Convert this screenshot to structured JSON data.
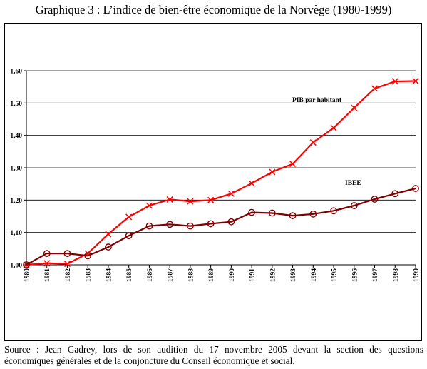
{
  "title": "Graphique 3 : L’indice de bien-être économique de la Norvège (1980-1999)",
  "source": {
    "line1": "Source : Jean Gadrey, lors de son audition du 17 novembre 2005 devant la section des questions",
    "line2": "économiques générales et de la conjoncture du Conseil économique et social."
  },
  "chart_data": {
    "type": "line",
    "title": "Graphique 3 : L’indice de bien-être économique de la Norvège (1980-1999)",
    "xlabel": "",
    "ylabel": "",
    "categories": [
      "1980",
      "1981",
      "1982",
      "1983",
      "1984",
      "1985",
      "1986",
      "1987",
      "1988",
      "1989",
      "1990",
      "1991",
      "1992",
      "1993",
      "1994",
      "1995",
      "1996",
      "1997",
      "1998",
      "1999"
    ],
    "y_ticks": [
      "1,00",
      "1,10",
      "1,20",
      "1,30",
      "1,40",
      "1,50",
      "1,60"
    ],
    "ylim": [
      1.0,
      1.6
    ],
    "grid": true,
    "legend": "inline labels",
    "series": [
      {
        "name": "PIB par habitant",
        "color": "#ff0000",
        "marker": "x",
        "values": [
          1.0,
          1.005,
          1.003,
          1.035,
          1.095,
          1.148,
          1.183,
          1.202,
          1.196,
          1.2,
          1.22,
          1.252,
          1.287,
          1.312,
          1.378,
          1.423,
          1.485,
          1.545,
          1.567,
          1.568
        ]
      },
      {
        "name": "IBEE",
        "color": "#800000",
        "marker": "circle",
        "values": [
          1.0,
          1.035,
          1.035,
          1.028,
          1.055,
          1.09,
          1.12,
          1.125,
          1.12,
          1.127,
          1.133,
          1.162,
          1.16,
          1.152,
          1.157,
          1.167,
          1.183,
          1.203,
          1.22,
          1.236
        ]
      }
    ]
  }
}
